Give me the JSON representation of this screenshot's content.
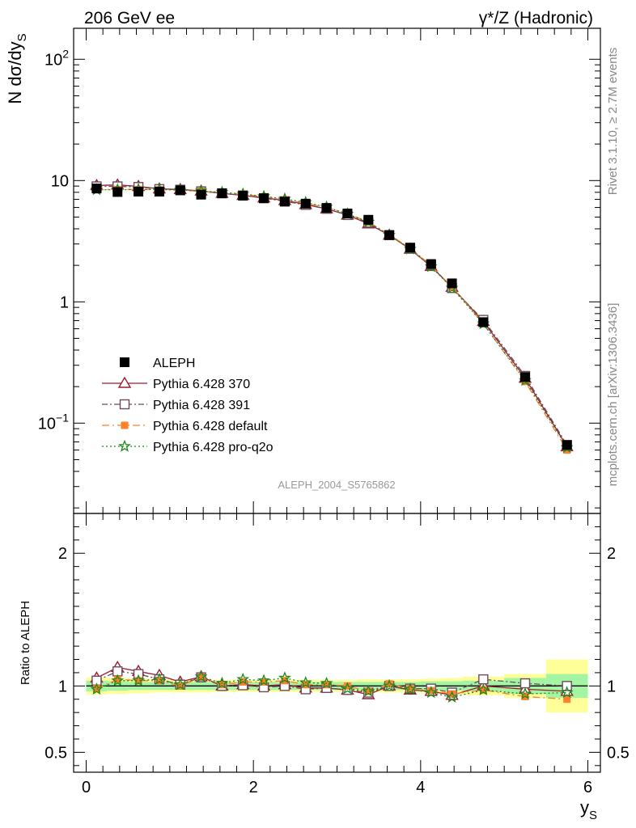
{
  "header": {
    "left": "206 GeV ee",
    "right": "γ*/Z (Hadronic)"
  },
  "side_labels": {
    "rivet": "Rivet 3.1.10, ≥ 2.7M events",
    "mcplots": "mcplots.cern.ch [arXiv:1306.3436]"
  },
  "analysis_id": "ALEPH_2004_S5765862",
  "colors": {
    "aleph": "#000000",
    "p370": "#9b1c31",
    "p391": "#6e4a5e",
    "pdefault": "#ff7f2a",
    "pq2o": "#1a8a1a",
    "band_inner": "#a3f5a3",
    "band_outer": "#ffff99"
  },
  "chart_data": [
    {
      "type": "line",
      "panel": "main",
      "ylabel": "N dσ/dy_S",
      "ylabel_main": "N dσ/dy",
      "ylabel_sub": "S",
      "yscale": "log",
      "ylim": [
        0.018,
        180
      ],
      "xlim": [
        -0.15,
        6.15
      ],
      "y_ticks": [
        {
          "value": 100,
          "label": "10",
          "sup": "2"
        },
        {
          "value": 10,
          "label": "10",
          "sup": ""
        },
        {
          "value": 1,
          "label": "1",
          "sup": ""
        },
        {
          "value": 0.1,
          "label": "10",
          "sup": "−1"
        }
      ],
      "x": [
        0.125,
        0.375,
        0.625,
        0.875,
        1.125,
        1.375,
        1.625,
        1.875,
        2.125,
        2.375,
        2.625,
        2.875,
        3.125,
        3.375,
        3.625,
        3.875,
        4.125,
        4.375,
        4.75,
        5.25,
        5.75
      ],
      "series": [
        {
          "name": "ALEPH",
          "style": "data",
          "values": [
            8.6,
            8.05,
            8.1,
            8.1,
            8.3,
            7.65,
            7.85,
            7.5,
            7.15,
            6.7,
            6.45,
            5.95,
            5.35,
            4.75,
            3.55,
            2.8,
            2.05,
            1.42,
            0.68,
            0.24,
            0.066
          ]
        },
        {
          "name": "Pythia 6.428 370",
          "style": "triangle",
          "values": [
            9.1,
            9.2,
            8.95,
            8.55,
            8.45,
            8.2,
            7.85,
            7.55,
            7.2,
            6.85,
            6.35,
            5.85,
            5.2,
            4.4,
            3.55,
            2.72,
            1.96,
            1.32,
            0.69,
            0.235,
            0.064
          ]
        },
        {
          "name": "Pythia 6.428 391",
          "style": "square",
          "values": [
            8.95,
            8.95,
            8.85,
            8.5,
            8.4,
            8.15,
            7.85,
            7.55,
            7.15,
            6.75,
            6.3,
            5.85,
            5.2,
            4.5,
            3.55,
            2.75,
            2.0,
            1.3,
            0.71,
            0.245,
            0.066
          ]
        },
        {
          "name": "Pythia 6.428 default",
          "style": "orange",
          "values": [
            8.4,
            8.45,
            8.45,
            8.4,
            8.3,
            8.15,
            7.95,
            7.7,
            7.35,
            6.95,
            6.5,
            6.0,
            5.35,
            4.55,
            3.6,
            2.75,
            1.98,
            1.33,
            0.66,
            0.22,
            0.06
          ]
        },
        {
          "name": "Pythia 6.428 pro-q2o",
          "style": "star",
          "values": [
            8.4,
            8.4,
            8.45,
            8.45,
            8.35,
            8.2,
            8.0,
            7.75,
            7.4,
            7.05,
            6.6,
            6.05,
            5.3,
            4.55,
            3.55,
            2.72,
            1.95,
            1.3,
            0.66,
            0.225,
            0.063
          ]
        }
      ],
      "legend": [
        {
          "label": "ALEPH",
          "style": "data"
        },
        {
          "label": "Pythia 6.428 370",
          "style": "triangle"
        },
        {
          "label": "Pythia 6.428 391",
          "style": "square"
        },
        {
          "label": "Pythia 6.428 default",
          "style": "orange"
        },
        {
          "label": "Pythia 6.428 pro-q2o",
          "style": "star"
        }
      ],
      "legend_position": "lower-left"
    },
    {
      "type": "line",
      "panel": "ratio",
      "ylabel": "Ratio to ALEPH",
      "xlabel": "y_S",
      "xlabel_main": "y",
      "xlabel_sub": "S",
      "ylim": [
        0.35,
        2.3
      ],
      "xlim": [
        -0.15,
        6.15
      ],
      "y_ticks": [
        {
          "value": 2,
          "label": "2"
        },
        {
          "value": 1,
          "label": "1"
        },
        {
          "value": 0.5,
          "label": "0.5"
        }
      ],
      "x_ticks": [
        {
          "value": 0,
          "label": "0"
        },
        {
          "value": 2,
          "label": "2"
        },
        {
          "value": 4,
          "label": "4"
        },
        {
          "value": 6,
          "label": "6"
        }
      ],
      "bins": [
        [
          0,
          0.25
        ],
        [
          0.25,
          0.5
        ],
        [
          0.5,
          0.75
        ],
        [
          0.75,
          1.0
        ],
        [
          1.0,
          1.25
        ],
        [
          1.25,
          1.5
        ],
        [
          1.5,
          1.75
        ],
        [
          1.75,
          2.0
        ],
        [
          2.0,
          2.25
        ],
        [
          2.25,
          2.5
        ],
        [
          2.5,
          2.75
        ],
        [
          2.75,
          3.0
        ],
        [
          3.0,
          3.25
        ],
        [
          3.25,
          3.5
        ],
        [
          3.5,
          3.75
        ],
        [
          3.75,
          4.0
        ],
        [
          4.0,
          4.25
        ],
        [
          4.25,
          4.5
        ],
        [
          4.5,
          5.0
        ],
        [
          5.0,
          5.5
        ],
        [
          5.5,
          6.0
        ]
      ],
      "band_inner": [
        0.04,
        0.035,
        0.03,
        0.03,
        0.03,
        0.03,
        0.03,
        0.03,
        0.03,
        0.03,
        0.03,
        0.03,
        0.03,
        0.03,
        0.03,
        0.03,
        0.035,
        0.035,
        0.04,
        0.06,
        0.09
      ],
      "band_outer": [
        0.065,
        0.06,
        0.055,
        0.05,
        0.05,
        0.05,
        0.045,
        0.045,
        0.045,
        0.045,
        0.045,
        0.045,
        0.045,
        0.05,
        0.05,
        0.05,
        0.055,
        0.06,
        0.07,
        0.09,
        0.2
      ],
      "x": [
        0.125,
        0.375,
        0.625,
        0.875,
        1.125,
        1.375,
        1.625,
        1.875,
        2.125,
        2.375,
        2.625,
        2.875,
        3.125,
        3.375,
        3.625,
        3.875,
        4.125,
        4.375,
        4.75,
        5.25,
        5.75
      ],
      "series": [
        {
          "name": "Pythia 6.428 370",
          "style": "triangle",
          "values": [
            1.06,
            1.14,
            1.11,
            1.08,
            1.03,
            1.07,
            1.0,
            1.01,
            1.0,
            1.01,
            0.985,
            0.985,
            0.97,
            0.935,
            1.0,
            0.97,
            0.96,
            0.93,
            1.0,
            0.975,
            0.96
          ]
        },
        {
          "name": "Pythia 6.428 391",
          "style": "square",
          "values": [
            1.04,
            1.11,
            1.09,
            1.05,
            1.01,
            1.065,
            1.0,
            1.005,
            0.99,
            1.0,
            0.975,
            0.985,
            0.97,
            0.95,
            1.0,
            0.98,
            0.98,
            0.95,
            1.05,
            1.02,
            1.0
          ]
        },
        {
          "name": "Pythia 6.428 default",
          "style": "orange",
          "values": [
            0.98,
            1.05,
            1.04,
            1.04,
            1.0,
            1.065,
            1.01,
            1.03,
            1.03,
            1.04,
            1.01,
            1.01,
            1.0,
            0.96,
            1.015,
            0.98,
            0.965,
            0.94,
            0.97,
            0.92,
            0.9
          ]
        },
        {
          "name": "Pythia 6.428 pro-q2o",
          "style": "star",
          "values": [
            0.975,
            1.04,
            1.04,
            1.05,
            1.01,
            1.07,
            1.02,
            1.05,
            1.04,
            1.06,
            1.025,
            1.02,
            0.98,
            0.96,
            1.0,
            0.975,
            0.95,
            0.915,
            0.97,
            0.94,
            0.95
          ]
        }
      ]
    }
  ]
}
